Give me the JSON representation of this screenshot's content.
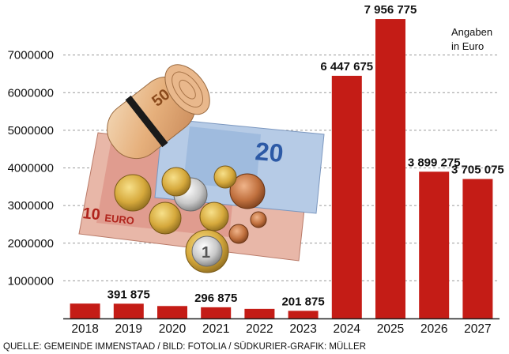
{
  "chart_data": {
    "type": "bar",
    "categories": [
      "2018",
      "2019",
      "2020",
      "2021",
      "2022",
      "2023",
      "2024",
      "2025",
      "2026",
      "2027"
    ],
    "values": [
      395000,
      391875,
      330000,
      296875,
      255000,
      201875,
      6447675,
      7956775,
      3899275,
      3705075
    ],
    "data_labels": [
      "",
      "391 875",
      "",
      "296 875",
      "",
      "201 875",
      "6 447 675",
      "7 956 775",
      "3 899 275",
      "3 705 075"
    ],
    "y_ticks": [
      1000000,
      2000000,
      3000000,
      4000000,
      5000000,
      6000000,
      7000000
    ],
    "y_tick_labels": [
      "1000000",
      "2000000",
      "3000000",
      "4000000",
      "5000000",
      "6000000",
      "7000000"
    ],
    "ylim": [
      0,
      8000000
    ],
    "grid": "horizontal dashed",
    "unit_note": [
      "Angaben",
      "in Euro"
    ],
    "source": "QUELLE: GEMEINDE IMMENSTAAD / BILD: FOTOLIA / SÜDKURIER-GRAFIK: MÜLLER",
    "colors": {
      "bar": "#c41c16",
      "grid": "#9a9a9a",
      "axis": "#222222",
      "text": "#111111"
    },
    "photo_icon": "euro-money-photo"
  }
}
